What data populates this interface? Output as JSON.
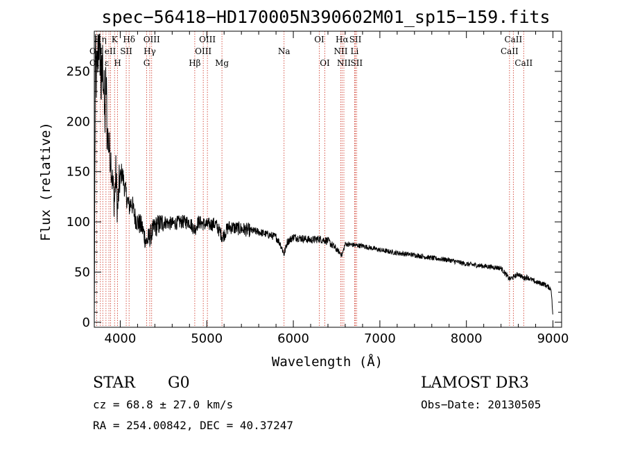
{
  "chart_data": {
    "type": "line",
    "title": "spec−56418−HD170005N390602M01_sp15−159.fits",
    "xlabel": "Wavelength (Å)",
    "ylabel": "Flux (relative)",
    "xlim": [
      3700,
      9100
    ],
    "ylim": [
      -5,
      290
    ],
    "x_ticks": [
      4000,
      5000,
      6000,
      7000,
      8000,
      9000
    ],
    "y_ticks": [
      0,
      50,
      100,
      150,
      200,
      250
    ],
    "spectrum_anchors": [
      [
        3700,
        0
      ],
      [
        3712,
        260
      ],
      [
        3730,
        240
      ],
      [
        3750,
        285
      ],
      [
        3770,
        270
      ],
      [
        3780,
        230
      ],
      [
        3800,
        260
      ],
      [
        3820,
        200
      ],
      [
        3835,
        240
      ],
      [
        3850,
        190
      ],
      [
        3870,
        175
      ],
      [
        3890,
        165
      ],
      [
        3910,
        140
      ],
      [
        3933,
        120
      ],
      [
        3950,
        150
      ],
      [
        3968,
        110
      ],
      [
        3990,
        140
      ],
      [
        4020,
        150
      ],
      [
        4060,
        130
      ],
      [
        4101,
        115
      ],
      [
        4130,
        120
      ],
      [
        4170,
        105
      ],
      [
        4200,
        100
      ],
      [
        4250,
        95
      ],
      [
        4300,
        80
      ],
      [
        4340,
        85
      ],
      [
        4400,
        95
      ],
      [
        4500,
        100
      ],
      [
        4600,
        98
      ],
      [
        4700,
        100
      ],
      [
        4800,
        100
      ],
      [
        4861,
        92
      ],
      [
        4900,
        100
      ],
      [
        5000,
        97
      ],
      [
        5100,
        98
      ],
      [
        5183,
        85
      ],
      [
        5250,
        95
      ],
      [
        5400,
        93
      ],
      [
        5600,
        90
      ],
      [
        5800,
        85
      ],
      [
        5850,
        78
      ],
      [
        5893,
        68
      ],
      [
        5930,
        80
      ],
      [
        6000,
        85
      ],
      [
        6200,
        82
      ],
      [
        6300,
        83
      ],
      [
        6400,
        81
      ],
      [
        6563,
        67
      ],
      [
        6600,
        78
      ],
      [
        6800,
        76
      ],
      [
        7000,
        72
      ],
      [
        7200,
        69
      ],
      [
        7400,
        67
      ],
      [
        7600,
        64
      ],
      [
        7800,
        62
      ],
      [
        8000,
        58
      ],
      [
        8200,
        56
      ],
      [
        8400,
        54
      ],
      [
        8498,
        43
      ],
      [
        8542,
        45
      ],
      [
        8600,
        48
      ],
      [
        8662,
        44
      ],
      [
        8700,
        45
      ],
      [
        8800,
        40
      ],
      [
        8900,
        38
      ],
      [
        8980,
        33
      ],
      [
        9000,
        5
      ]
    ],
    "spectral_lines": [
      {
        "name": "K",
        "wavelength": 3934,
        "label_row": 1
      },
      {
        "name": "H",
        "wavelength": 3969,
        "label_row": 3
      },
      {
        "name": "Hδ",
        "wavelength": 4102,
        "label_row": 1
      },
      {
        "name": "SII",
        "wavelength": 4069,
        "label_row": 2
      },
      {
        "name": "OIII",
        "wavelength": 4363,
        "label_row": 1
      },
      {
        "name": "Hγ",
        "wavelength": 4341,
        "label_row": 2
      },
      {
        "name": "G",
        "wavelength": 4305,
        "label_row": 3
      },
      {
        "name": "Hβ",
        "wavelength": 4861,
        "label_row": 3
      },
      {
        "name": "OIII",
        "wavelength": 5007,
        "label_row": 1
      },
      {
        "name": "OIII",
        "wavelength": 4959,
        "label_row": 2
      },
      {
        "name": "Mg",
        "wavelength": 5175,
        "label_row": 3
      },
      {
        "name": "Na",
        "wavelength": 5893,
        "label_row": 2
      },
      {
        "name": "OI",
        "wavelength": 6300,
        "label_row": 1
      },
      {
        "name": "OI",
        "wavelength": 6364,
        "label_row": 3
      },
      {
        "name": "Hα",
        "wavelength": 6563,
        "label_row": 1
      },
      {
        "name": "NII",
        "wavelength": 6548,
        "label_row": 2
      },
      {
        "name": "NII",
        "wavelength": 6584,
        "label_row": 3
      },
      {
        "name": "SII",
        "wavelength": 6717,
        "label_row": 1
      },
      {
        "name": "Li",
        "wavelength": 6708,
        "label_row": 2
      },
      {
        "name": "SII",
        "wavelength": 6731,
        "label_row": 3
      },
      {
        "name": "CaII",
        "wavelength": 8542,
        "label_row": 1
      },
      {
        "name": "CaII",
        "wavelength": 8498,
        "label_row": 2
      },
      {
        "name": "CaII",
        "wavelength": 8662,
        "label_row": 3
      }
    ],
    "crowded_left_labels": {
      "row1": "Hη",
      "row2": "OII eII",
      "row3": "OII ε"
    },
    "crowded_lines": [
      3727,
      3770,
      3798,
      3835,
      3869,
      3889
    ]
  },
  "info": {
    "object_class": "STAR",
    "subclass": "G0",
    "survey": "LAMOST DR3",
    "redshift": "cz = 68.8 ± 27.0 km/s",
    "obs_date": "Obs−Date: 20130505",
    "coordinates": "RA = 254.00842, DEC =  40.37247"
  },
  "colors": {
    "spectrum": "#000000",
    "line_marker": "#cc2a1a",
    "axis": "#000000"
  }
}
